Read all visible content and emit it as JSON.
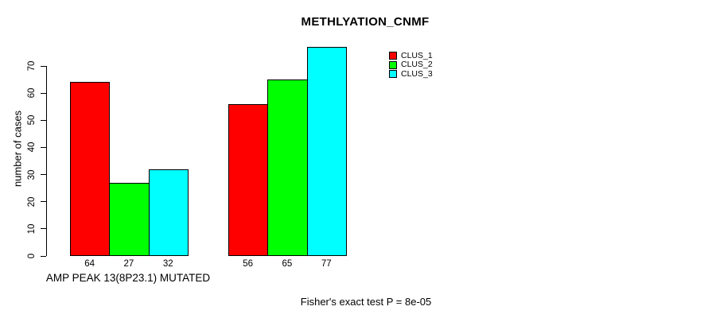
{
  "chart_data": {
    "type": "bar",
    "title": "METHLYATION_CNMF",
    "ylabel": "number of cases",
    "xlabel": "AMP PEAK 13(8P23.1) MUTATED",
    "annotation": "Fisher's exact test P = 8e-05",
    "ylim": [
      0,
      70
    ],
    "yticks": [
      0,
      10,
      20,
      30,
      40,
      50,
      60,
      70
    ],
    "grid": false,
    "legend_position": "top-right",
    "group_count": 2,
    "series": [
      {
        "name": "CLUS_1",
        "color": "#ff0000",
        "values": [
          64,
          56
        ]
      },
      {
        "name": "CLUS_2",
        "color": "#00ff00",
        "values": [
          27,
          65
        ]
      },
      {
        "name": "CLUS_3",
        "color": "#00ffff",
        "values": [
          32,
          77
        ]
      }
    ],
    "bar_value_labels": [
      [
        64,
        27,
        32
      ],
      [
        56,
        65,
        77
      ]
    ]
  },
  "colors": {
    "background": "#ffffff",
    "axis": "#000000",
    "text": "#000000",
    "bar_border": "#000000"
  }
}
